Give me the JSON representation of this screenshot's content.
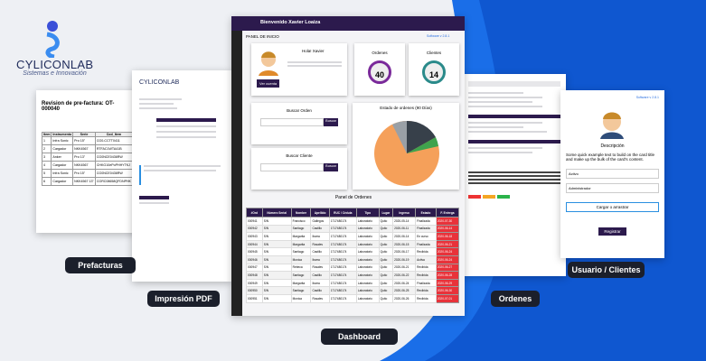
{
  "logo": {
    "name": "CYLICONLAB",
    "tagline": "Sistemas e Innovación"
  },
  "captions": [
    "Prefacturas",
    "Impresión PDF",
    "Dashboard",
    "Ordenes",
    "Usuario / Clientes"
  ],
  "prefactura": {
    "title": "Revision de pre-factura: OT-000040",
    "headers": [
      "Item",
      "Instrumento",
      "Serie",
      "Cod_Item"
    ],
    "rows": [
      [
        "1",
        "Infra Sonic",
        "Pro 15\"",
        "CG0-CCTT0411"
      ],
      [
        "2",
        "Cargador",
        "NKK4567",
        "RTFAC1WTA41B"
      ],
      [
        "3",
        "Anker",
        "Pro 13\"",
        "CG0NCE0436RW"
      ],
      [
        "4",
        "Cargador",
        "NKK4567",
        "CHKG10ePoPHHYTKJ"
      ],
      [
        "5",
        "Infra Sonic",
        "Pro 15\"",
        "CG0NCE0436RW"
      ],
      [
        "6",
        "Cargador",
        "NKK4567 13\"",
        "CGRC08658QFDNPHK"
      ]
    ]
  },
  "dashboard": {
    "welcome": "Bienvenido Xavier Loaiza",
    "panel": "PANEL DE INICIO",
    "version": "Software v 2.8.1",
    "greeting": "Hola! Xavier",
    "account_button": "Ver cuenta",
    "stats": [
      {
        "label": "Ordenes",
        "count": "40",
        "color": "#7a2a9a"
      },
      {
        "label": "Clientes",
        "count": "14",
        "color": "#2a8a8a"
      }
    ],
    "search_order": "Buscar Orden",
    "search_client": "Buscar Cliente",
    "search_button": "Buscar",
    "chart_title": "Estado de ordenes (90 Días)",
    "table_title": "Panel de Ordenes",
    "headers": [
      "#Ord",
      "Número Serial",
      "Nombre",
      "Apellido",
      "RUC / Cédula",
      "Tipo",
      "Lugar",
      "Ingreso",
      "Estado",
      "F. Entrega"
    ],
    "rows": [
      [
        "000941",
        "S/N",
        "Francisco",
        "Gallegos",
        "1717480174",
        "Laboratorio",
        "Quito",
        "2020-05-14",
        "Finalizada",
        "2020-07-30"
      ],
      [
        "000942",
        "S/N",
        "Santiago",
        "Castillo",
        "1717480174",
        "Laboratorio",
        "Quito",
        "2020-06-11",
        "Finalizada",
        "2020-06-14"
      ],
      [
        "000943",
        "S/N",
        "Margarita",
        "Ibarra",
        "1717480174",
        "Laboratorio",
        "Quito",
        "2020-06-14",
        "En curso",
        "2020-06-18"
      ],
      [
        "000944",
        "S/N",
        "Margarita",
        "Rosales",
        "1717480174",
        "Laboratorio",
        "Quito",
        "2020-06-15",
        "Finalizada",
        "2020-06-21"
      ],
      [
        "000945",
        "S/N",
        "Santiago",
        "Castillo",
        "1717480174",
        "Laboratorio",
        "Quito",
        "2020-06-17",
        "Recibida",
        "2020-06-24"
      ],
      [
        "000946",
        "S/N",
        "Monica",
        "Ibarra",
        "1717480174",
        "Laboratorio",
        "Quito",
        "2020-06-19",
        "Activa",
        "2020-06-24"
      ],
      [
        "000947",
        "S/N",
        "Rebeca",
        "Rosales",
        "1717480174",
        "Laboratorio",
        "Quito",
        "2020-06-21",
        "Recibida",
        "2020-06-27"
      ],
      [
        "000948",
        "S/N",
        "Santiago",
        "Castillo",
        "1717480174",
        "Laboratorio",
        "Quito",
        "2020-06-22",
        "Recibida",
        "2020-06-28"
      ],
      [
        "000949",
        "S/N",
        "Margarita",
        "Ibarra",
        "1717480174",
        "Laboratorio",
        "Quito",
        "2020-06-24",
        "Finalizada",
        "2020-06-29"
      ],
      [
        "000950",
        "S/N",
        "Santiago",
        "Castillo",
        "1717480174",
        "Laboratorio",
        "Quito",
        "2020-06-25",
        "Recibida",
        "2020-06-30"
      ],
      [
        "000951",
        "S/N",
        "Monica",
        "Rosales",
        "1717480174",
        "Laboratorio",
        "Quito",
        "2020-06-26",
        "Recibida",
        "2020-07-01"
      ]
    ]
  },
  "usuario": {
    "version": "Software v 2.8.1",
    "title": "Descripción",
    "text": "Some quick example text to build on the card title and make up the bulk of the card's content.",
    "status": "Activo",
    "role": "Administrador",
    "upload": "Cargar o arrastrar",
    "button": "Registrar"
  }
}
